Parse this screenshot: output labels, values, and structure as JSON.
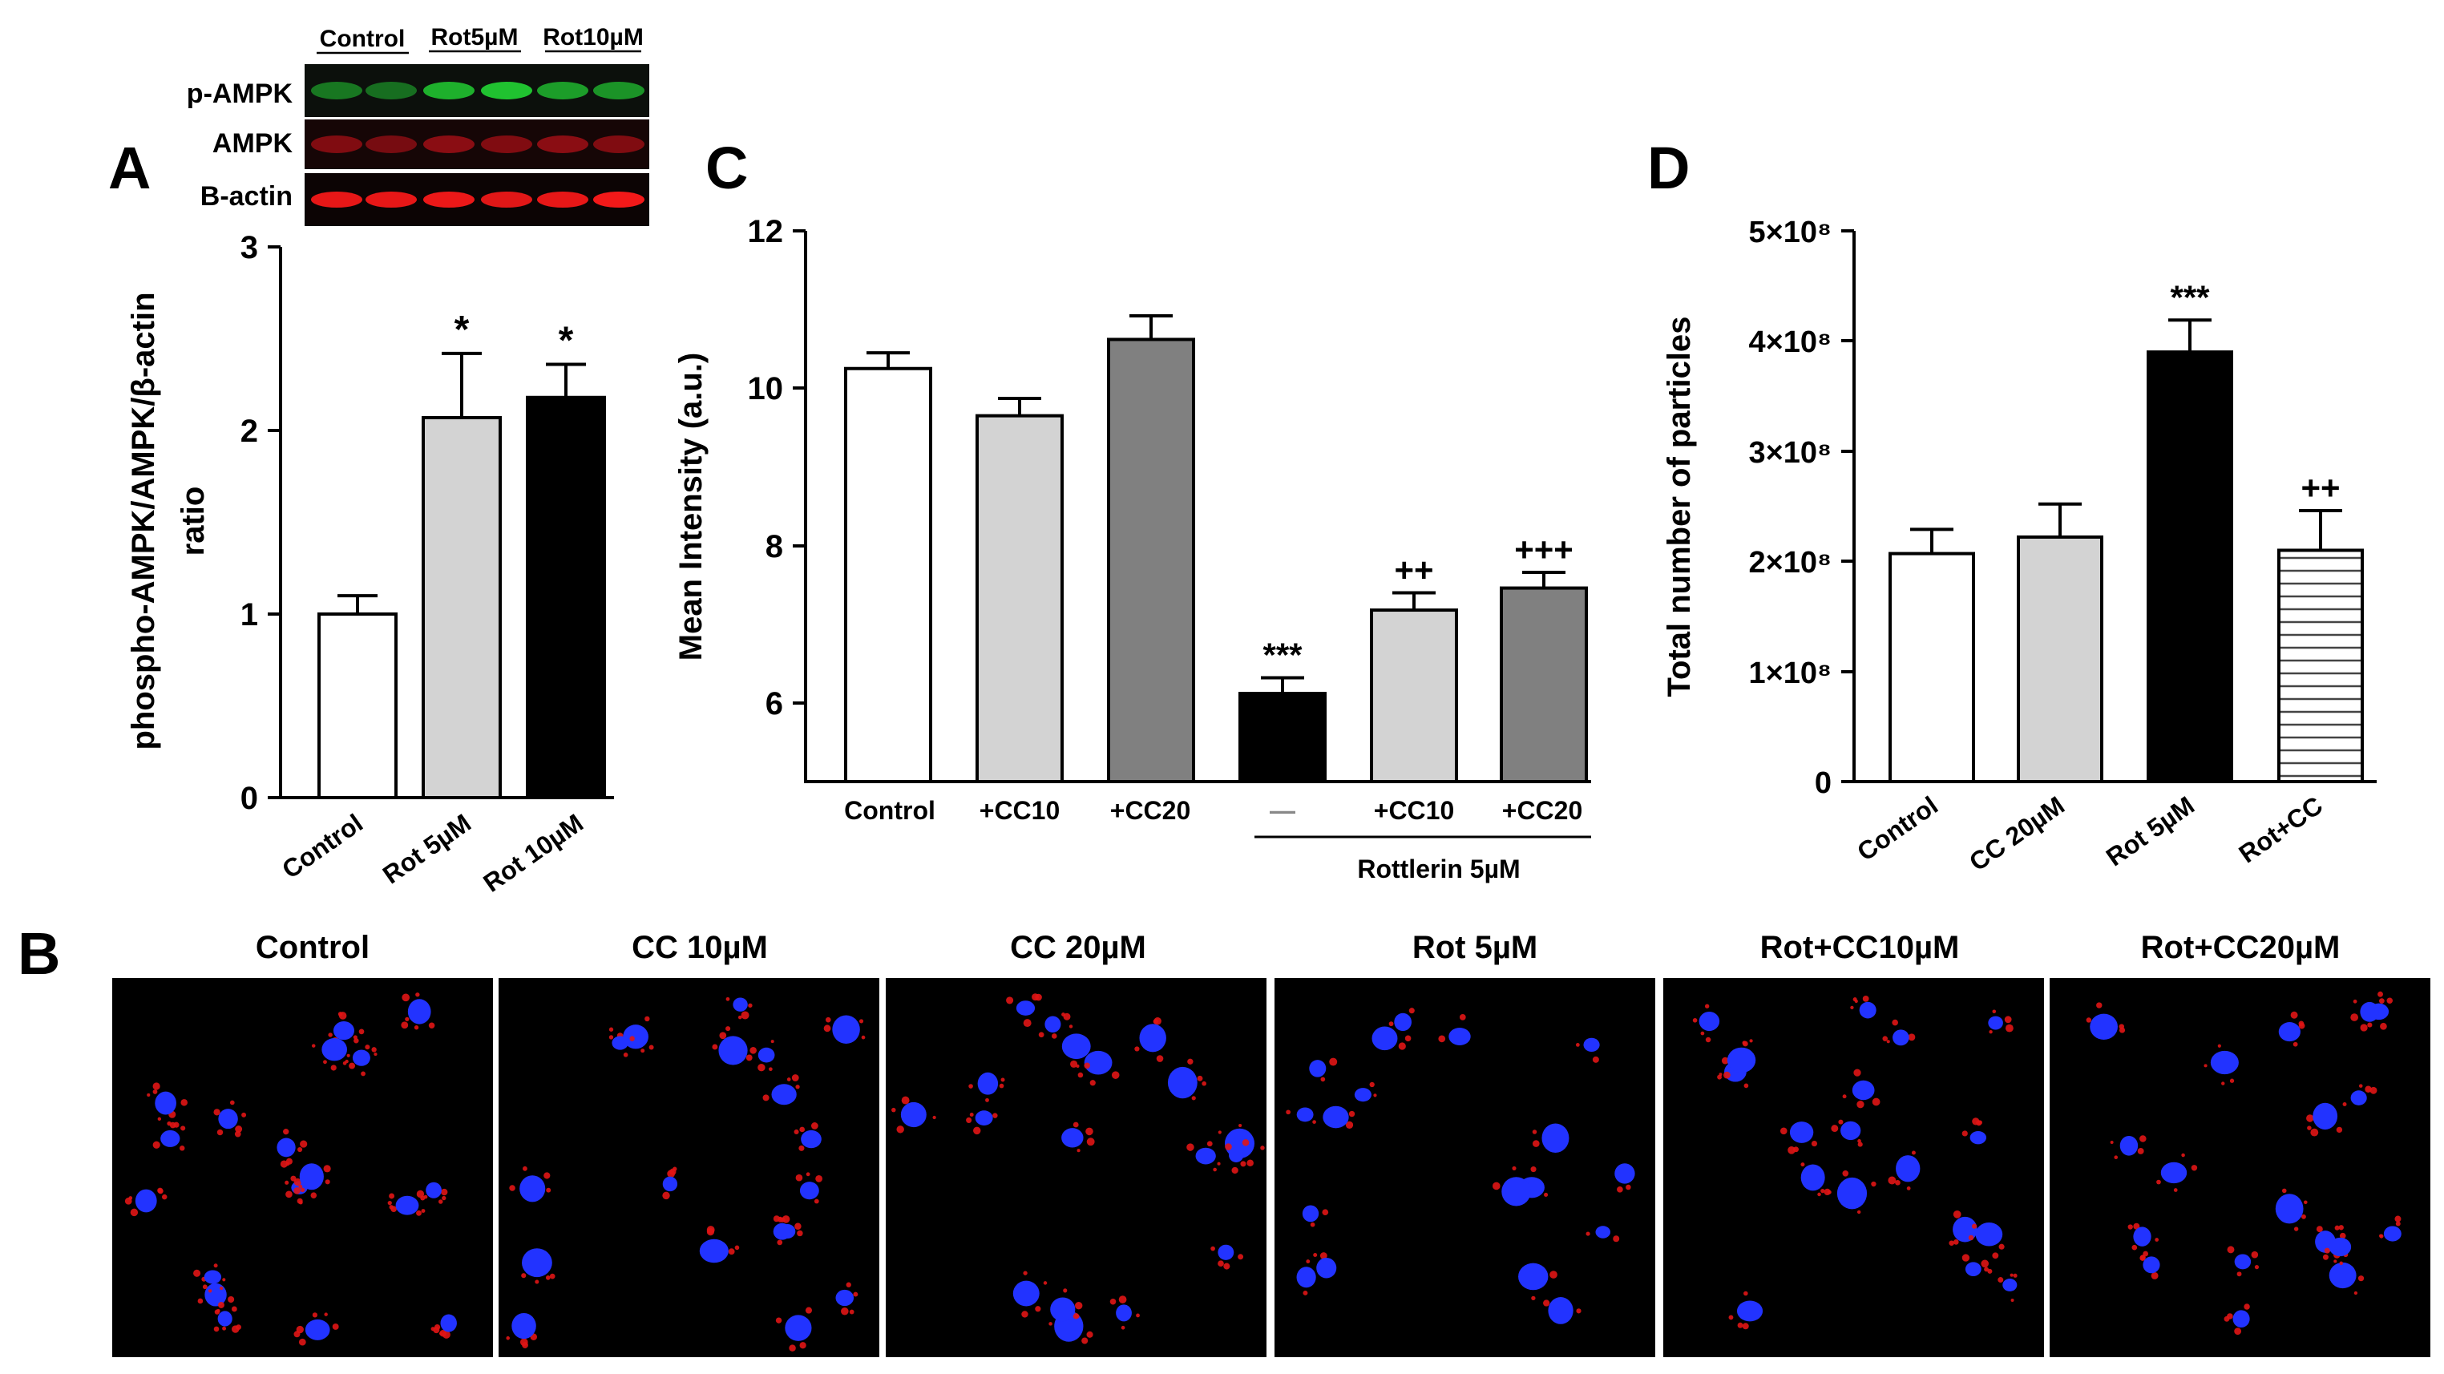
{
  "panel_letters": {
    "a": "A",
    "b": "B",
    "c": "C",
    "d": "D"
  },
  "western_blot": {
    "groups": [
      "Control",
      "Rot5µM",
      "Rot10µM"
    ],
    "rows": [
      {
        "label": "p-AMPK",
        "color": "#22cc33"
      },
      {
        "label": "AMPK",
        "color": "#d8121c"
      },
      {
        "label": "B-actin",
        "color": "#ff1a1a"
      }
    ]
  },
  "micrographs": {
    "titles": [
      "Control",
      "CC 10µM",
      "CC 20µM",
      "Rot 5µM",
      "Rot+CC10µM",
      "Rot+CC20µM"
    ],
    "nucleus_color": "#2233ff",
    "stain_color": "#e01515"
  },
  "chart_data": [
    {
      "panel": "A",
      "type": "bar",
      "categories": [
        "Control",
        "Rot 5µM",
        "Rot 10µM"
      ],
      "values": [
        1.0,
        2.07,
        2.18
      ],
      "errors": [
        0.1,
        0.35,
        0.18
      ],
      "significance": [
        "",
        "*",
        "*"
      ],
      "fills": [
        "#ffffff",
        "#d3d3d3",
        "#000000"
      ],
      "ylabel_line1": "phospho-AMPK/AMPK/β-actin",
      "ylabel_line2": "ratio",
      "ylim": [
        0,
        3
      ],
      "yticks": [
        "0",
        "1",
        "2",
        "3"
      ]
    },
    {
      "panel": "C",
      "type": "bar",
      "categories": [
        "Control",
        "+CC10",
        "+CC20",
        "—",
        "+CC10",
        "+CC20"
      ],
      "values": [
        10.25,
        9.65,
        10.62,
        6.12,
        7.18,
        7.46
      ],
      "errors": [
        0.2,
        0.22,
        0.3,
        0.2,
        0.22,
        0.2
      ],
      "significance": [
        "",
        "",
        "",
        "***",
        "++",
        "+++"
      ],
      "fills": [
        "#ffffff",
        "#d3d3d3",
        "#808080",
        "#000000",
        "#d3d3d3",
        "#808080"
      ],
      "group_label": "Rottlerin 5µM",
      "ylabel": "Mean Intensity (a.u.)",
      "ylim": [
        5,
        12
      ],
      "yticks": [
        "6",
        "8",
        "10",
        "12"
      ]
    },
    {
      "panel": "D",
      "type": "bar",
      "categories": [
        "Control",
        "CC 20µM",
        "Rot 5µM",
        "Rot+CC"
      ],
      "values": [
        207000000,
        222000000,
        390000000,
        210000000
      ],
      "errors": [
        22000000,
        30000000,
        29000000,
        36000000
      ],
      "significance": [
        "",
        "",
        "***",
        "++"
      ],
      "fills": [
        "#ffffff",
        "#d3d3d3",
        "#000000",
        "hatch"
      ],
      "ylabel": "Total number of particles",
      "ylim": [
        0,
        500000000
      ],
      "yticks": [
        "0",
        "1×10⁸",
        "2×10⁸",
        "3×10⁸",
        "4×10⁸",
        "5×10⁸"
      ]
    }
  ]
}
